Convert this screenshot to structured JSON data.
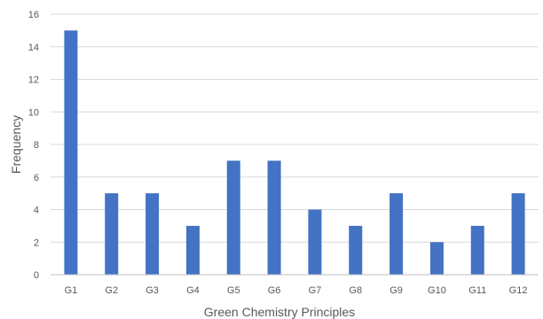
{
  "chart_data": {
    "type": "bar",
    "title": "",
    "xlabel": "Green Chemistry Principles",
    "ylabel": "Frequency",
    "categories": [
      "G1",
      "G2",
      "G3",
      "G4",
      "G5",
      "G6",
      "G7",
      "G8",
      "G9",
      "G10",
      "G11",
      "G12"
    ],
    "values": [
      15,
      5,
      5,
      3,
      7,
      7,
      4,
      3,
      5,
      2,
      3,
      5
    ],
    "ylim": [
      0,
      16
    ],
    "yticks": [
      "0",
      "2",
      "4",
      "6",
      "8",
      "10",
      "12",
      "14",
      "16"
    ],
    "grid": true,
    "legend": "none",
    "bar_color": "#4472c4",
    "grid_color": "#d9d9d9",
    "axis_color": "#bfbfbf",
    "text_color": "#595959"
  }
}
